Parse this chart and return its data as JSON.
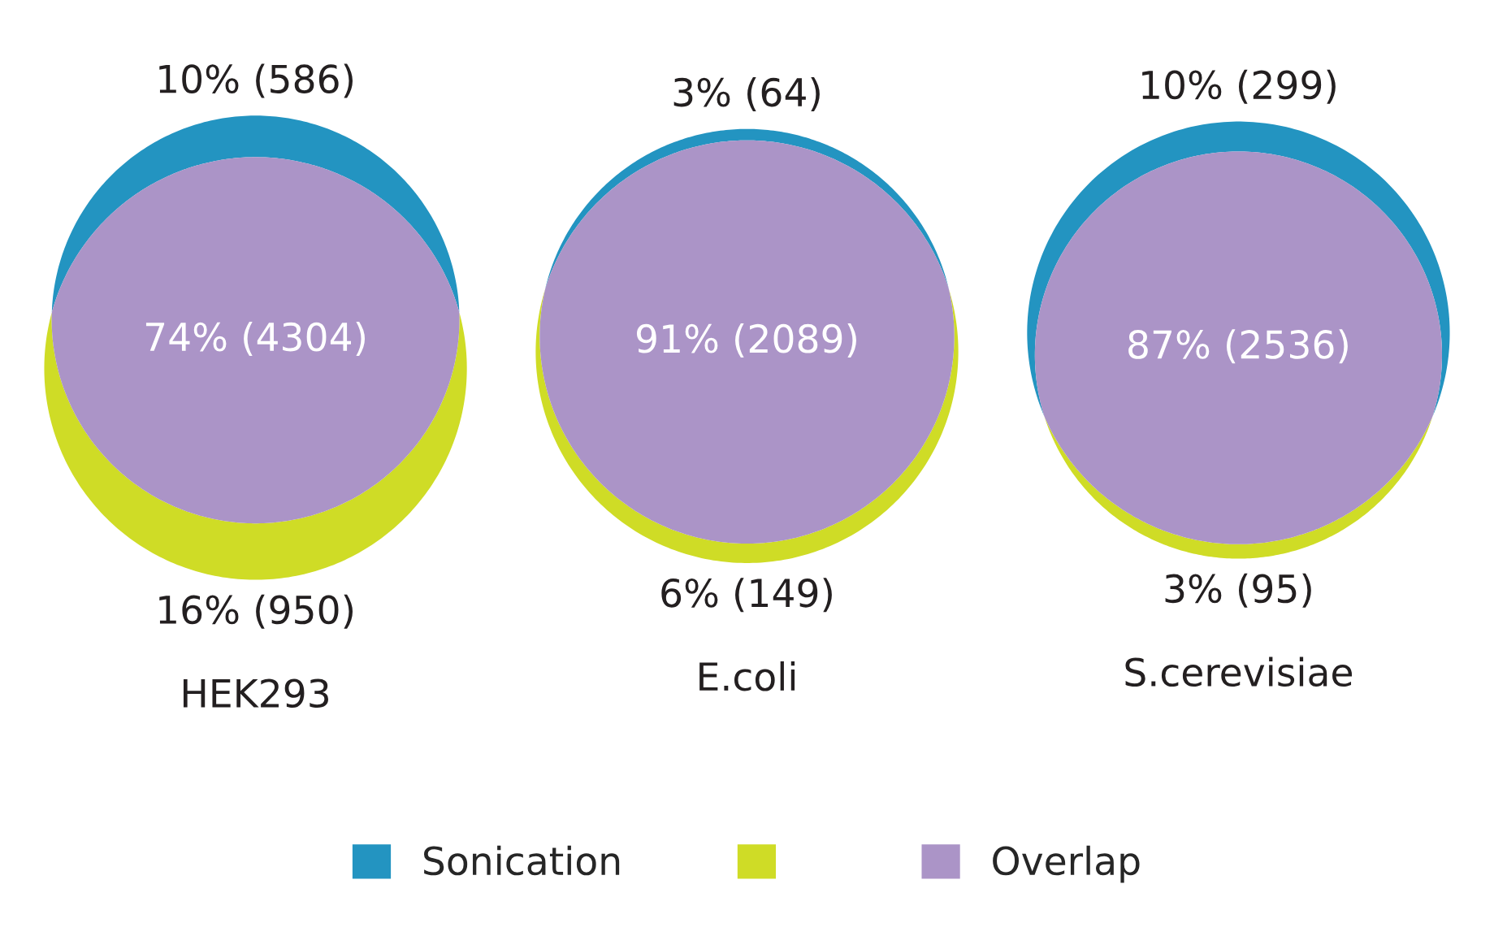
{
  "chart_data": {
    "type": "other",
    "legend": "bottom",
    "categories": [
      "HEK293",
      "E.coli",
      "S.cerevisiae"
    ],
    "series": [
      {
        "name": "Sonication",
        "color": "#2394c1",
        "values": [
          586,
          64,
          299
        ],
        "value_labels": [
          "10% (586)",
          "3% (64)",
          "10% (299)"
        ]
      },
      {
        "color": "#cfdc26",
        "values": [
          950,
          149,
          95
        ],
        "value_labels": [
          "16% (950)",
          "6% (149)",
          "3% (95)"
        ]
      },
      {
        "name": "Overlap",
        "color": "#ab94c7",
        "values": [
          4304,
          2089,
          2536
        ],
        "value_labels": [
          "74% (4304)",
          "91% (2089)",
          "87% (2536)"
        ]
      }
    ]
  }
}
